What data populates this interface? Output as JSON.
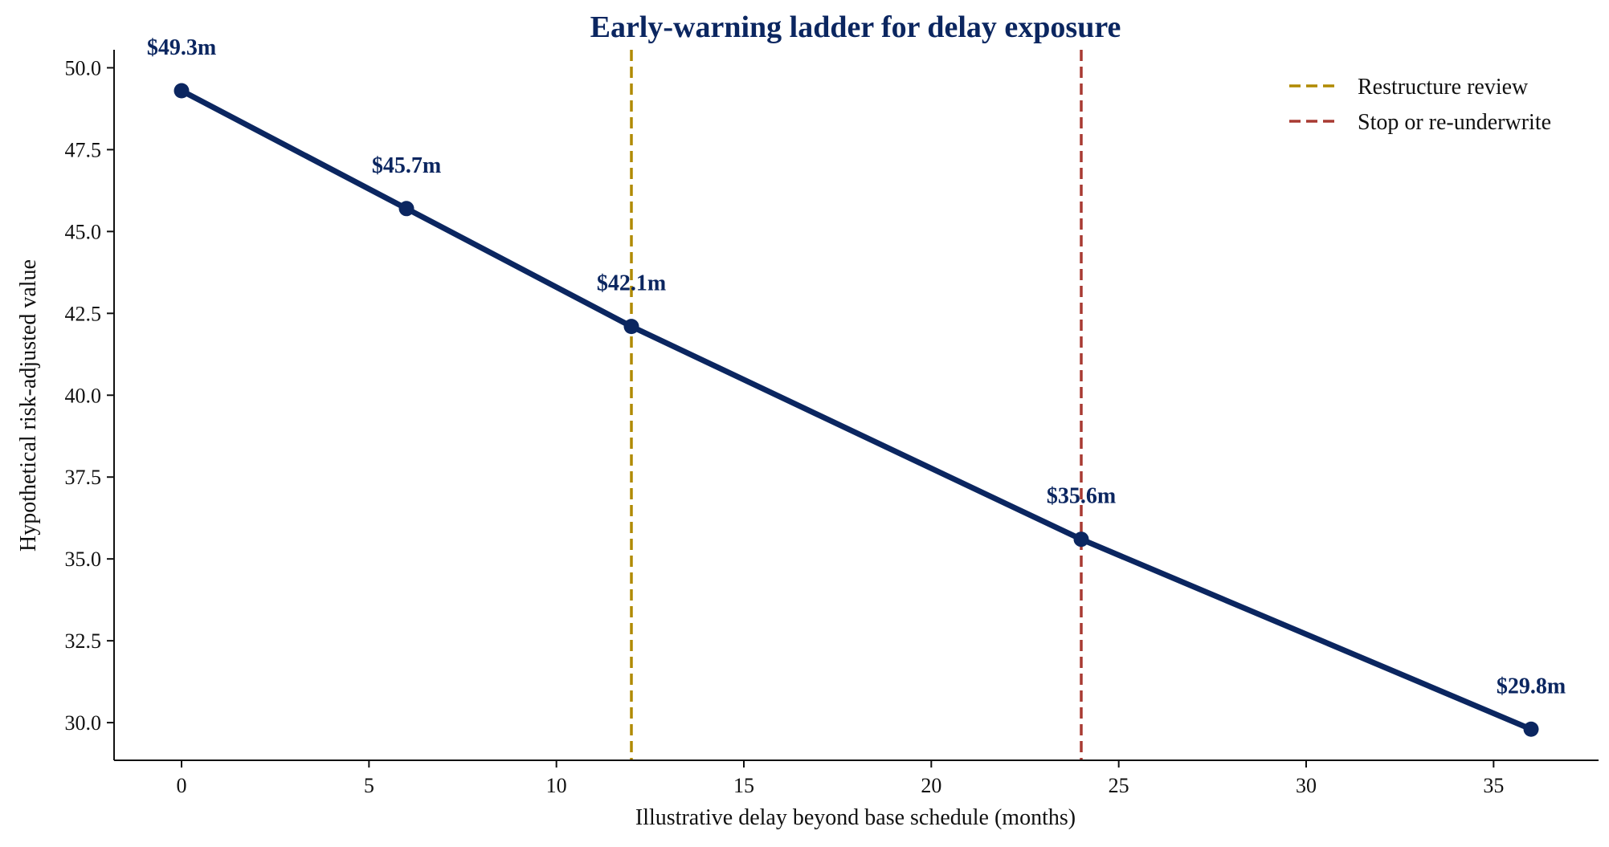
{
  "chart_data": {
    "type": "line",
    "title": "Early-warning ladder for delay exposure",
    "xlabel": "Illustrative delay beyond base schedule (months)",
    "ylabel": "Hypothetical risk-adjusted value",
    "xlim": [
      -1.8,
      37.8
    ],
    "ylim": [
      28.85,
      50.55
    ],
    "x_ticks": [
      0,
      5,
      10,
      15,
      20,
      25,
      30,
      35
    ],
    "y_ticks": [
      30.0,
      32.5,
      35.0,
      37.5,
      40.0,
      42.5,
      45.0,
      47.5,
      50.0
    ],
    "grid": false,
    "legend_position": "top-right",
    "series": [
      {
        "x": [
          0,
          6,
          12,
          24,
          36
        ],
        "y": [
          49.3,
          45.7,
          42.1,
          35.6,
          29.8
        ],
        "labels": [
          "$49.3m",
          "$45.7m",
          "$42.1m",
          "$35.6m",
          "$29.8m"
        ],
        "color": "#0b2660"
      }
    ],
    "vlines": [
      {
        "x": 12,
        "name": "Restructure review",
        "color": "#b08a00"
      },
      {
        "x": 24,
        "name": "Stop or re-underwrite",
        "color": "#a83a32"
      }
    ]
  }
}
